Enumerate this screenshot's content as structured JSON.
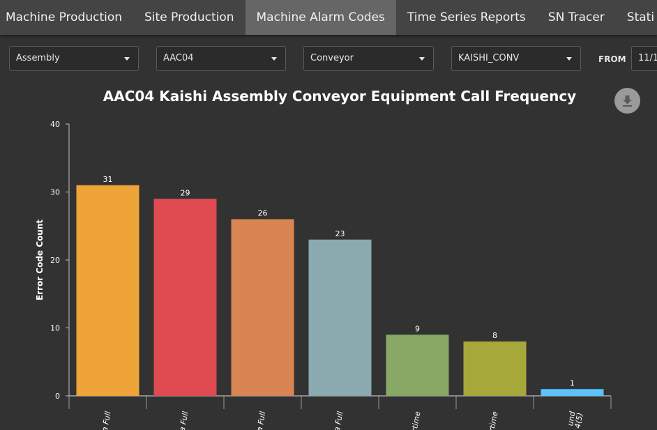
{
  "nav": {
    "tabs": [
      {
        "label": "Machine Production",
        "active": false
      },
      {
        "label": "Site Production",
        "active": false
      },
      {
        "label": "Machine Alarm Codes",
        "active": true
      },
      {
        "label": "Time Series Reports",
        "active": false
      },
      {
        "label": "SN Tracer",
        "active": false
      },
      {
        "label": "Stati",
        "active": false
      }
    ]
  },
  "filters": {
    "selects": [
      {
        "value": "Assembly"
      },
      {
        "value": "AAC04"
      },
      {
        "value": "Conveyor"
      },
      {
        "value": "KAISHI_CONV"
      }
    ],
    "from_label": "FROM",
    "from_value": "11/1"
  },
  "download_icon": "download-icon",
  "chart_data": {
    "type": "bar",
    "title": "AAC04 Kaishi Assembly Conveyor Equipment Call Frequency",
    "ylabel": "Error Code Count",
    "xlabel": "",
    "ylim": [
      0,
      40
    ],
    "yticks": [
      0,
      10,
      20,
      30,
      40
    ],
    "grid": false,
    "categories": [
      "a Full",
      "a Full",
      "a Full",
      "a Full",
      "rtime",
      "rtime",
      "und\n4(5)"
    ],
    "values": [
      31,
      29,
      26,
      23,
      9,
      8,
      1
    ],
    "colors": [
      "#EFA43A",
      "#E04B51",
      "#D98553",
      "#8AAAAF",
      "#88A866",
      "#A7A83A",
      "#5BC3FB"
    ]
  }
}
